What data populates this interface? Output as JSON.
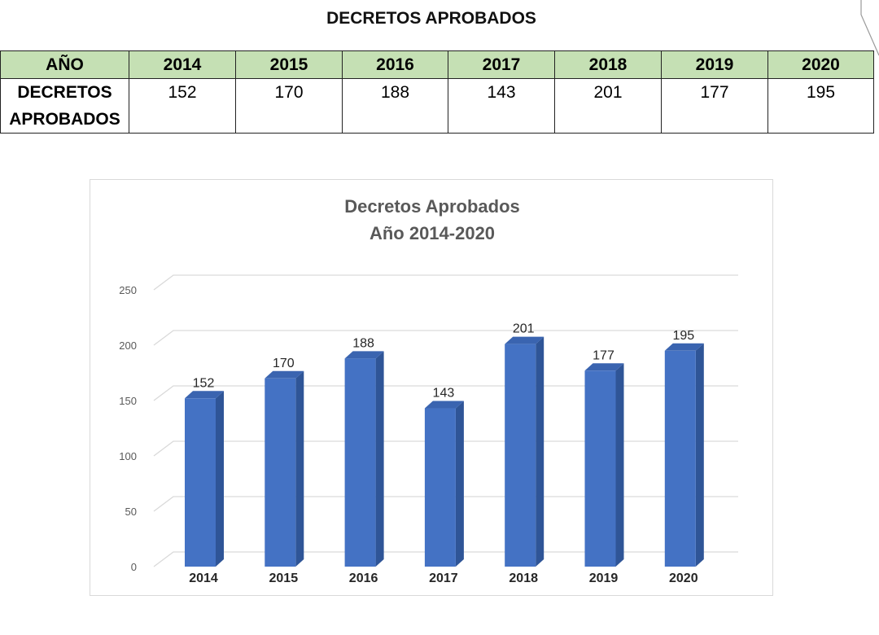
{
  "page": {
    "title": "DECRETOS APROBADOS"
  },
  "table": {
    "header_label": "AÑO",
    "row_label": "DECRETOS APROBADOS",
    "years": [
      "2014",
      "2015",
      "2016",
      "2017",
      "2018",
      "2019",
      "2020"
    ],
    "values": [
      "152",
      "170",
      "188",
      "143",
      "201",
      "177",
      "195"
    ]
  },
  "colors": {
    "header_fill": "#c5e0b4",
    "bar_front": "#4472c4",
    "bar_side": "#2f5597",
    "bar_top": "#3a64b0"
  },
  "chart_data": {
    "type": "bar",
    "title": "Decretos Aprobados",
    "subtitle": "Año 2014-2020",
    "categories": [
      "2014",
      "2015",
      "2016",
      "2017",
      "2018",
      "2019",
      "2020"
    ],
    "values": [
      152,
      170,
      188,
      143,
      201,
      177,
      195
    ],
    "data_labels": [
      "152",
      "170",
      "188",
      "143",
      "201",
      "177",
      "195"
    ],
    "y_ticks": [
      0,
      50,
      100,
      150,
      200,
      250
    ],
    "ylim": [
      0,
      250
    ],
    "xlabel": "",
    "ylabel": "",
    "grid": true,
    "legend": "none"
  }
}
